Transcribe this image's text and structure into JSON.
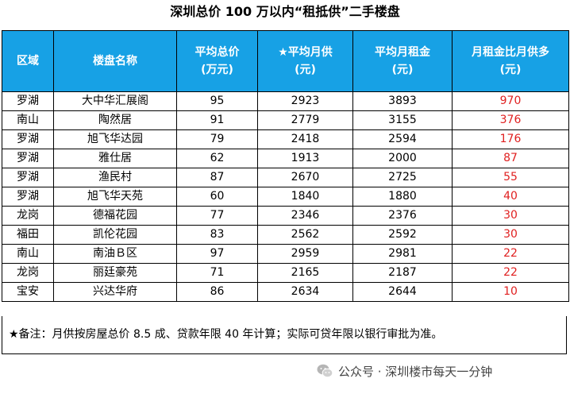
{
  "title": "深圳总价 100  万以内“租抵供”二手楼盘",
  "table": {
    "headers": [
      [
        "区域"
      ],
      [
        "楼盘名称"
      ],
      [
        "平均总价",
        "(万元)"
      ],
      [
        "★平均月供",
        "(元)"
      ],
      [
        "平均月租金",
        "(元)"
      ],
      [
        "月租金比月供多",
        "(元)"
      ]
    ],
    "rows": [
      [
        "罗湖",
        "大中华汇展阁",
        "95",
        "2923",
        "3893",
        "970"
      ],
      [
        "南山",
        "陶然居",
        "91",
        "2779",
        "3155",
        "376"
      ],
      [
        "罗湖",
        "旭飞华达园",
        "79",
        "2418",
        "2594",
        "176"
      ],
      [
        "罗湖",
        "雅仕居",
        "62",
        "1913",
        "2000",
        "87"
      ],
      [
        "罗湖",
        "渔民村",
        "87",
        "2670",
        "2725",
        "55"
      ],
      [
        "罗湖",
        "旭飞华天苑",
        "60",
        "1840",
        "1880",
        "40"
      ],
      [
        "龙岗",
        "德福花园",
        "77",
        "2346",
        "2376",
        "30"
      ],
      [
        "福田",
        "凯伦花园",
        "83",
        "2562",
        "2592",
        "30"
      ],
      [
        "南山",
        "南油Ｂ区",
        "97",
        "2959",
        "2981",
        "22"
      ],
      [
        "龙岗",
        "丽廷豪苑",
        "71",
        "2165",
        "2187",
        "22"
      ],
      [
        "宝安",
        "兴达华府",
        "86",
        "2634",
        "2644",
        "10"
      ]
    ]
  },
  "note": "★备注：月供按房屋总价 8.5 成、贷款年限 40 年计算；实际可贷年限以银行审批为准。",
  "footer": {
    "icon": "wechat-icon",
    "text": "公众号 · 深圳楼市每天一分钟"
  },
  "colors": {
    "header_bg": "#17a1e5",
    "highlight_text": "#e02020"
  }
}
